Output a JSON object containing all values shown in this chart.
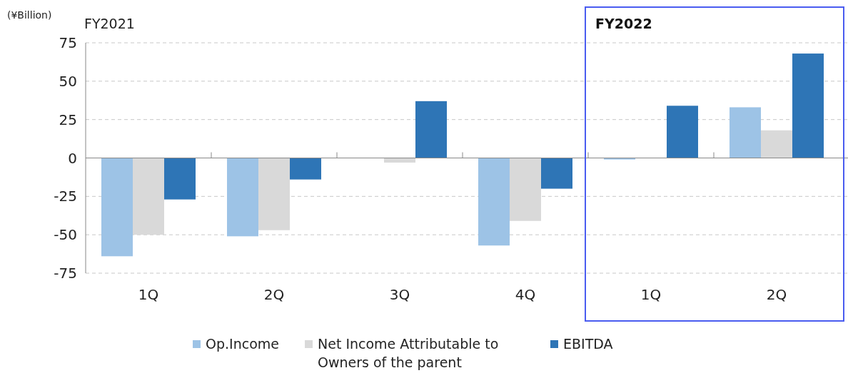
{
  "chart_data": {
    "type": "bar",
    "ylabel": "(¥Billion)",
    "categories": [
      "1Q",
      "2Q",
      "3Q",
      "4Q",
      "1Q",
      "2Q"
    ],
    "series": [
      {
        "name": "Op.Income",
        "color": "#9dc3e6",
        "values": [
          -64,
          -51,
          0,
          -57,
          -1,
          33
        ]
      },
      {
        "name": "Net Income Attributable to Owners of the parent",
        "color": "#d9d9d9",
        "values": [
          -50,
          -47,
          -3,
          -41,
          null,
          18
        ]
      },
      {
        "name": "EBITDA",
        "color": "#2e75b6",
        "values": [
          -27,
          -14,
          37,
          -20,
          34,
          68
        ]
      }
    ],
    "annotations": [
      "FY2021",
      "FY2022"
    ],
    "ylim": [
      -75,
      75
    ],
    "yticks": [
      -75,
      -50,
      -25,
      0,
      25,
      50,
      75
    ],
    "grid": "y",
    "legend": "bottom"
  }
}
